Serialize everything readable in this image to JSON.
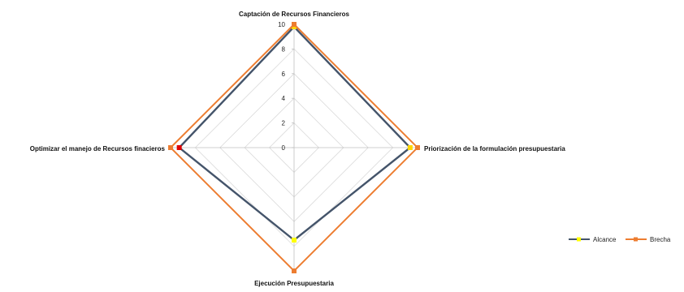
{
  "chart_data": {
    "type": "radar",
    "categories": [
      "Captación de Recursos Financieros",
      "Priorización de la formulación presupuestaria",
      "Ejecución Presupuestaria",
      "Optimizar el manejo de Recursos finacieros"
    ],
    "rlim": [
      0,
      10
    ],
    "ticks": [
      "0",
      "2",
      "4",
      "6",
      "8",
      "10"
    ],
    "series": [
      {
        "name": "Alcance",
        "values": [
          9.8,
          9.4,
          7.5,
          9.3
        ],
        "line_color": "#44546a",
        "marker_colors": [
          "#ffd700",
          "#ffd700",
          "#ffff00",
          "#e00000"
        ]
      },
      {
        "name": "Brecha",
        "values": [
          10,
          10,
          10,
          10
        ],
        "line_color": "#ed7d31",
        "marker_colors": [
          "#ed7d31",
          "#ed7d31",
          "#ed7d31",
          "#ed7d31"
        ]
      }
    ],
    "grid": true,
    "legend": "right"
  }
}
